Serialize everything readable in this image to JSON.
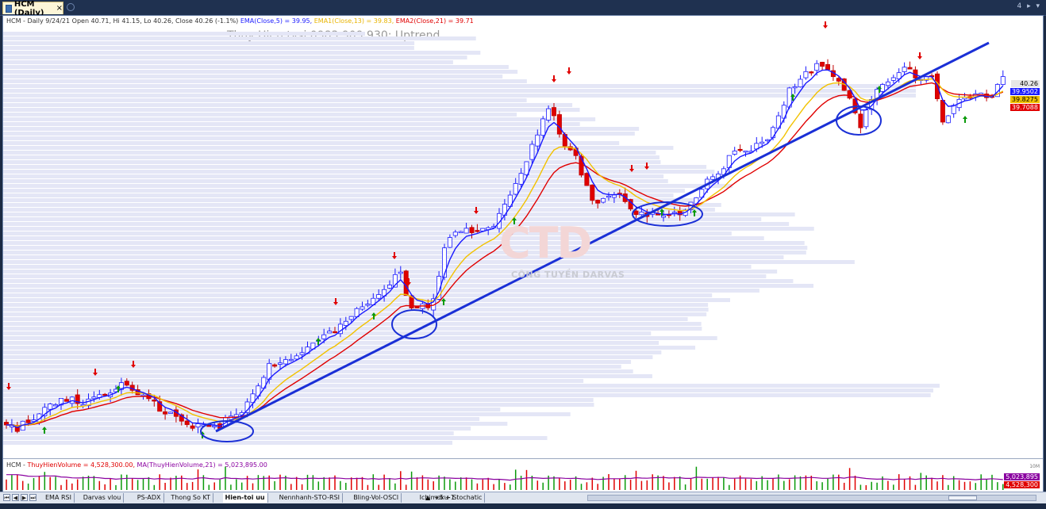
{
  "window": {
    "tab_title": "HCM (Daily)",
    "tab_close": "×",
    "right_controls": "4 ▸ ▾"
  },
  "chart": {
    "info": {
      "symbol_line": "HCM - Daily 9/24/21 Open 40.71, Hi 41.15, Lo 40.26, Close 40.26 (-1.1%)",
      "ema5": "EMA(Close,5) = 39.95,",
      "ema13": "EMA1(Close,13) = 39.83,",
      "ema21": "EMA2(Close,21) = 39.71"
    },
    "subtitle": "Thuy Hien tvsi 0983 909 930: Uptrend",
    "watermark_text": "CÔNG TUYỀN DARVAS",
    "watermark_logo": "CTD",
    "price_tags": [
      {
        "label": "40.26",
        "bg": "#e6e6e6",
        "fg": "#000000"
      },
      {
        "label": "39.9502",
        "bg": "#1a1aff",
        "fg": "#ffffff"
      },
      {
        "label": "39.8275",
        "bg": "#f2c200",
        "fg": "#000000"
      },
      {
        "label": "39.7088",
        "bg": "#e00000",
        "fg": "#ffffff"
      }
    ],
    "volume": {
      "label_prefix": "HCM - ",
      "label_vol": "ThuyHienVolume = 4,528,300.00,",
      "label_ma": "MA(ThuyHienVolume,21) = 5,023,895.00",
      "scale_tag": "10M",
      "tags": [
        {
          "label": "5,023,895",
          "bg": "#8a00a0",
          "fg": "#ffffff"
        },
        {
          "label": "4,528,300",
          "bg": "#e00000",
          "fg": "#ffffff"
        }
      ]
    },
    "colors": {
      "up": "#ffffff",
      "down": "#e00000",
      "ema5": "#1a1aff",
      "ema13": "#f2c200",
      "ema21": "#e00000",
      "trendline": "#1a2fd6",
      "profile": "#e4e6f6"
    }
  },
  "sheet_tabs": [
    "EMA RSI",
    "Darvas vlou",
    "PS-ADX",
    "Thong So KT",
    "Hien-toi uu",
    "Nennhanh-STO-RSI",
    "Bling-Vol-OSCI",
    "Ichimoku- Stochatic"
  ],
  "active_sheet": "Hien-toi uu",
  "nav_buttons": [
    "⏮",
    "◀",
    "▶",
    "⏭"
  ],
  "extra_controls": [
    "▲",
    "+5",
    "+1"
  ]
}
